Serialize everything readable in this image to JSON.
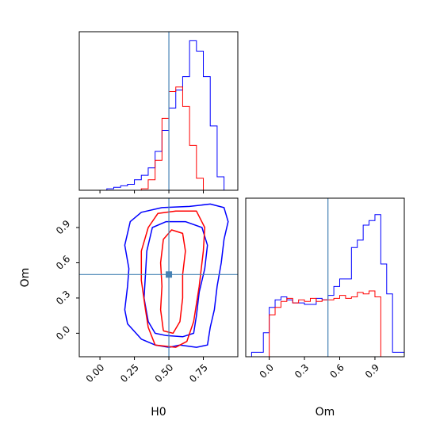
{
  "colors": {
    "blue": "#0000ff",
    "red": "#ff0000",
    "truth": "#4682b4",
    "axis": "#000000"
  },
  "labels": {
    "xlabel_left": "H0",
    "xlabel_right": "Om",
    "ylabel_left": "Om"
  },
  "chart_data": [
    {
      "type": "step-histogram",
      "panel": "H0 marginal (top-left)",
      "xlim": [
        -0.15,
        1.0
      ],
      "ylim": [
        0,
        1.06
      ],
      "yticks": "hidden",
      "truth": 0.5,
      "series": [
        {
          "name": "",
          "color": "#0000ff",
          "edges": [
            0.0,
            0.05,
            0.1,
            0.15,
            0.2,
            0.25,
            0.3,
            0.35,
            0.4,
            0.45,
            0.5,
            0.55,
            0.6,
            0.65,
            0.7,
            0.75,
            0.8,
            0.85,
            0.9,
            0.95,
            1.0
          ],
          "values": [
            0.0,
            0.01,
            0.02,
            0.03,
            0.04,
            0.07,
            0.1,
            0.15,
            0.26,
            0.4,
            0.55,
            0.67,
            0.76,
            1.0,
            0.93,
            0.76,
            0.43,
            0.09,
            0.0,
            0.0
          ]
        },
        {
          "name": "",
          "color": "#ff0000",
          "edges": [
            0.3,
            0.35,
            0.4,
            0.45,
            0.5,
            0.55,
            0.6,
            0.65,
            0.7,
            0.75
          ],
          "values": [
            0.01,
            0.07,
            0.2,
            0.48,
            0.66,
            0.69,
            0.56,
            0.3,
            0.08
          ]
        }
      ]
    },
    {
      "type": "contour",
      "panel": "H0 vs Om (bottom-left)",
      "x": "H0",
      "y": "Om",
      "xlim": [
        -0.15,
        1.0
      ],
      "ylim": [
        -0.2,
        1.15
      ],
      "xticks": [
        "0.00",
        "0.25",
        "0.50",
        "0.75"
      ],
      "xtick_values": [
        0.0,
        0.25,
        0.5,
        0.75
      ],
      "yticks": [
        "0.0",
        "0.3",
        "0.6",
        "0.9"
      ],
      "ytick_values": [
        0.0,
        0.3,
        0.6,
        0.9
      ],
      "truth": [
        0.5,
        0.5
      ],
      "series": [
        {
          "name": "",
          "color": "#0000ff",
          "contours": [
            [
              [
                0.58,
                -0.1
              ],
              [
                0.7,
                -0.12
              ],
              [
                0.78,
                -0.1
              ],
              [
                0.8,
                0.05
              ],
              [
                0.83,
                0.2
              ],
              [
                0.85,
                0.4
              ],
              [
                0.88,
                0.6
              ],
              [
                0.9,
                0.8
              ],
              [
                0.93,
                0.95
              ],
              [
                0.9,
                1.07
              ],
              [
                0.8,
                1.1
              ],
              [
                0.65,
                1.08
              ],
              [
                0.45,
                1.07
              ],
              [
                0.3,
                1.03
              ],
              [
                0.22,
                0.95
              ],
              [
                0.18,
                0.75
              ],
              [
                0.21,
                0.55
              ],
              [
                0.2,
                0.4
              ],
              [
                0.18,
                0.2
              ],
              [
                0.2,
                0.08
              ],
              [
                0.3,
                -0.05
              ],
              [
                0.4,
                -0.1
              ],
              [
                0.5,
                -0.12
              ],
              [
                0.58,
                -0.1
              ]
            ],
            [
              [
                0.48,
                -0.02
              ],
              [
                0.6,
                -0.03
              ],
              [
                0.68,
                0.0
              ],
              [
                0.7,
                0.15
              ],
              [
                0.72,
                0.35
              ],
              [
                0.76,
                0.55
              ],
              [
                0.78,
                0.75
              ],
              [
                0.74,
                0.9
              ],
              [
                0.62,
                0.95
              ],
              [
                0.48,
                0.95
              ],
              [
                0.38,
                0.9
              ],
              [
                0.34,
                0.7
              ],
              [
                0.33,
                0.5
              ],
              [
                0.32,
                0.3
              ],
              [
                0.35,
                0.1
              ],
              [
                0.4,
                0.0
              ],
              [
                0.48,
                -0.02
              ]
            ]
          ]
        },
        {
          "name": "",
          "color": "#ff0000",
          "contours": [
            [
              [
                0.4,
                -0.1
              ],
              [
                0.55,
                -0.12
              ],
              [
                0.63,
                -0.07
              ],
              [
                0.68,
                0.1
              ],
              [
                0.72,
                0.4
              ],
              [
                0.75,
                0.7
              ],
              [
                0.76,
                0.9
              ],
              [
                0.7,
                1.04
              ],
              [
                0.55,
                1.04
              ],
              [
                0.42,
                1.02
              ],
              [
                0.35,
                0.9
              ],
              [
                0.3,
                0.7
              ],
              [
                0.3,
                0.45
              ],
              [
                0.33,
                0.2
              ],
              [
                0.35,
                0.05
              ],
              [
                0.4,
                -0.1
              ]
            ],
            [
              [
                0.46,
                0.02
              ],
              [
                0.53,
                0.0
              ],
              [
                0.58,
                0.1
              ],
              [
                0.6,
                0.3
              ],
              [
                0.6,
                0.5
              ],
              [
                0.62,
                0.7
              ],
              [
                0.6,
                0.85
              ],
              [
                0.52,
                0.88
              ],
              [
                0.46,
                0.8
              ],
              [
                0.44,
                0.6
              ],
              [
                0.45,
                0.4
              ],
              [
                0.44,
                0.2
              ],
              [
                0.46,
                0.02
              ]
            ]
          ]
        }
      ]
    },
    {
      "type": "step-histogram",
      "panel": "Om marginal (bottom-right)",
      "xlim": [
        -0.2,
        1.15
      ],
      "ylim": [
        0,
        1.06
      ],
      "xticks": [
        "0.0",
        "0.3",
        "0.6",
        "0.9"
      ],
      "xtick_values": [
        0.0,
        0.3,
        0.6,
        0.9
      ],
      "yticks": "hidden",
      "truth": 0.5,
      "series": [
        {
          "name": "",
          "color": "#0000ff",
          "edges": [
            -0.15,
            -0.1,
            -0.05,
            0.0,
            0.05,
            0.1,
            0.15,
            0.2,
            0.25,
            0.3,
            0.35,
            0.4,
            0.45,
            0.5,
            0.55,
            0.6,
            0.65,
            0.7,
            0.75,
            0.8,
            0.85,
            0.9,
            0.95,
            1.0,
            1.05,
            1.1,
            1.15
          ],
          "values": [
            0.03,
            0.03,
            0.16,
            0.33,
            0.38,
            0.4,
            0.38,
            0.36,
            0.36,
            0.35,
            0.35,
            0.39,
            0.38,
            0.41,
            0.47,
            0.52,
            0.52,
            0.73,
            0.78,
            0.88,
            0.91,
            0.95,
            0.62,
            0.42,
            0.03,
            0.03
          ]
        },
        {
          "name": "",
          "color": "#ff0000",
          "edges": [
            0.0,
            0.05,
            0.1,
            0.15,
            0.2,
            0.25,
            0.3,
            0.35,
            0.4,
            0.45,
            0.5,
            0.55,
            0.6,
            0.65,
            0.7,
            0.75,
            0.8,
            0.85,
            0.9,
            0.95,
            1.0
          ],
          "values": [
            0.28,
            0.33,
            0.37,
            0.39,
            0.36,
            0.38,
            0.37,
            0.39,
            0.37,
            0.38,
            0.38,
            0.39,
            0.41,
            0.39,
            0.4,
            0.43,
            0.42,
            0.44,
            0.4,
            0.0
          ]
        }
      ]
    }
  ]
}
